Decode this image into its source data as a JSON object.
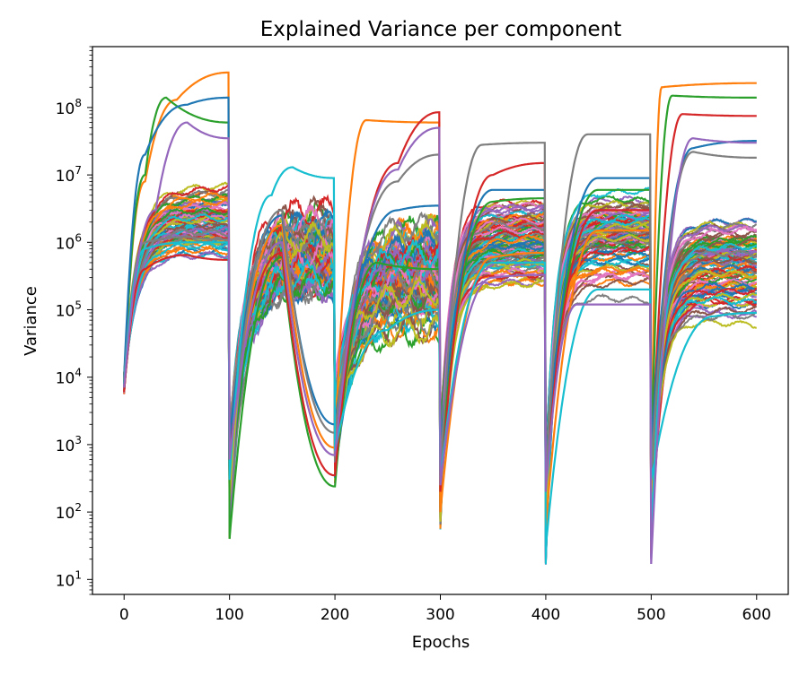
{
  "chart_data": {
    "type": "line",
    "title": "Explained Variance per component",
    "xlabel": "Epochs",
    "ylabel": "Variance",
    "xlim": [
      -30,
      630
    ],
    "ylim": [
      6,
      800000000
    ],
    "yscale": "log",
    "grid": false,
    "legend": "none",
    "x_ticks": [
      0,
      100,
      200,
      300,
      400,
      500,
      600
    ],
    "y_ticks": [
      {
        "value": 10,
        "base": "10",
        "exp": "1"
      },
      {
        "value": 100,
        "base": "10",
        "exp": "2"
      },
      {
        "value": 1000,
        "base": "10",
        "exp": "3"
      },
      {
        "value": 10000,
        "base": "10",
        "exp": "4"
      },
      {
        "value": 100000,
        "base": "10",
        "exp": "5"
      },
      {
        "value": 1000000,
        "base": "10",
        "exp": "6"
      },
      {
        "value": 10000000,
        "base": "10",
        "exp": "7"
      },
      {
        "value": 100000000,
        "base": "10",
        "exp": "8"
      }
    ],
    "palette": [
      "#1f77b4",
      "#ff7f0e",
      "#2ca02c",
      "#d62728",
      "#9467bd",
      "#8c564b",
      "#e377c2",
      "#7f7f7f",
      "#bcbd22",
      "#17becf"
    ],
    "series_count": 100,
    "representative_series": [
      {
        "color": "#ff7f0e",
        "values": [
          [
            0,
            9000
          ],
          [
            20,
            8000000
          ],
          [
            50,
            130000000
          ],
          [
            99,
            330000000
          ],
          [
            100,
            600
          ],
          [
            150,
            1800000
          ],
          [
            200,
            900
          ],
          [
            230,
            65000000
          ],
          [
            299,
            60000000
          ],
          [
            300,
            100
          ],
          [
            350,
            600000
          ],
          [
            399,
            700000
          ],
          [
            400,
            60
          ],
          [
            450,
            1500000
          ],
          [
            499,
            1500000
          ],
          [
            500,
            200
          ],
          [
            510,
            200000000
          ],
          [
            600,
            230000000
          ]
        ]
      },
      {
        "color": "#2ca02c",
        "values": [
          [
            0,
            8000
          ],
          [
            20,
            10000000
          ],
          [
            40,
            140000000
          ],
          [
            99,
            60000000
          ],
          [
            100,
            40
          ],
          [
            150,
            600000
          ],
          [
            200,
            240
          ],
          [
            240,
            500000
          ],
          [
            299,
            400000
          ],
          [
            300,
            500
          ],
          [
            350,
            4000000
          ],
          [
            399,
            4500000
          ],
          [
            400,
            400
          ],
          [
            450,
            6000000
          ],
          [
            499,
            6000000
          ],
          [
            500,
            600
          ],
          [
            520,
            150000000
          ],
          [
            600,
            140000000
          ]
        ]
      },
      {
        "color": "#d62728",
        "values": [
          [
            0,
            6000
          ],
          [
            20,
            400000
          ],
          [
            60,
            650000
          ],
          [
            99,
            550000
          ],
          [
            100,
            900
          ],
          [
            150,
            700000
          ],
          [
            200,
            350
          ],
          [
            260,
            15000000
          ],
          [
            299,
            85000000
          ],
          [
            300,
            200
          ],
          [
            350,
            10000000
          ],
          [
            399,
            15000000
          ],
          [
            400,
            500
          ],
          [
            450,
            3000000
          ],
          [
            499,
            3000000
          ],
          [
            500,
            300
          ],
          [
            530,
            80000000
          ],
          [
            600,
            75000000
          ]
        ]
      },
      {
        "color": "#1f77b4",
        "values": [
          [
            0,
            10000
          ],
          [
            20,
            20000000
          ],
          [
            60,
            110000000
          ],
          [
            99,
            140000000
          ],
          [
            100,
            1200
          ],
          [
            150,
            2500000
          ],
          [
            200,
            2000
          ],
          [
            260,
            3000000
          ],
          [
            299,
            3500000
          ],
          [
            300,
            1000
          ],
          [
            350,
            6000000
          ],
          [
            399,
            6000000
          ],
          [
            400,
            600
          ],
          [
            450,
            9000000
          ],
          [
            499,
            9000000
          ],
          [
            500,
            800
          ],
          [
            540,
            25000000
          ],
          [
            600,
            32000000
          ]
        ]
      },
      {
        "color": "#7f7f7f",
        "values": [
          [
            0,
            9000
          ],
          [
            20,
            1000000
          ],
          [
            60,
            1200000
          ],
          [
            99,
            1100000
          ],
          [
            100,
            500
          ],
          [
            150,
            3000000
          ],
          [
            200,
            1500
          ],
          [
            260,
            8000000
          ],
          [
            299,
            20000000
          ],
          [
            300,
            400
          ],
          [
            340,
            28000000
          ],
          [
            399,
            30000000
          ],
          [
            400,
            300
          ],
          [
            440,
            40000000
          ],
          [
            499,
            40000000
          ],
          [
            500,
            400
          ],
          [
            540,
            22000000
          ],
          [
            600,
            18000000
          ]
        ]
      },
      {
        "color": "#17becf",
        "values": [
          [
            0,
            8000
          ],
          [
            20,
            800000
          ],
          [
            60,
            1000000
          ],
          [
            99,
            1000000
          ],
          [
            100,
            300
          ],
          [
            140,
            5000000
          ],
          [
            160,
            13000000
          ],
          [
            199,
            9000000
          ],
          [
            200,
            800
          ],
          [
            250,
            50000
          ],
          [
            299,
            100000
          ],
          [
            300,
            300
          ],
          [
            350,
            500000
          ],
          [
            399,
            500000
          ],
          [
            400,
            30
          ],
          [
            450,
            200000
          ],
          [
            499,
            200000
          ],
          [
            500,
            300
          ],
          [
            560,
            80000
          ],
          [
            600,
            90000
          ]
        ]
      },
      {
        "color": "#9467bd",
        "values": [
          [
            0,
            7000
          ],
          [
            30,
            3000000
          ],
          [
            60,
            60000000
          ],
          [
            99,
            35000000
          ],
          [
            100,
            600
          ],
          [
            150,
            1000000
          ],
          [
            200,
            700
          ],
          [
            260,
            12000000
          ],
          [
            299,
            50000000
          ],
          [
            300,
            250
          ],
          [
            350,
            300000
          ],
          [
            399,
            330000
          ],
          [
            400,
            200
          ],
          [
            430,
            120000
          ],
          [
            499,
            120000
          ],
          [
            500,
            17
          ],
          [
            540,
            35000000
          ],
          [
            600,
            30000000
          ]
        ]
      }
    ]
  }
}
